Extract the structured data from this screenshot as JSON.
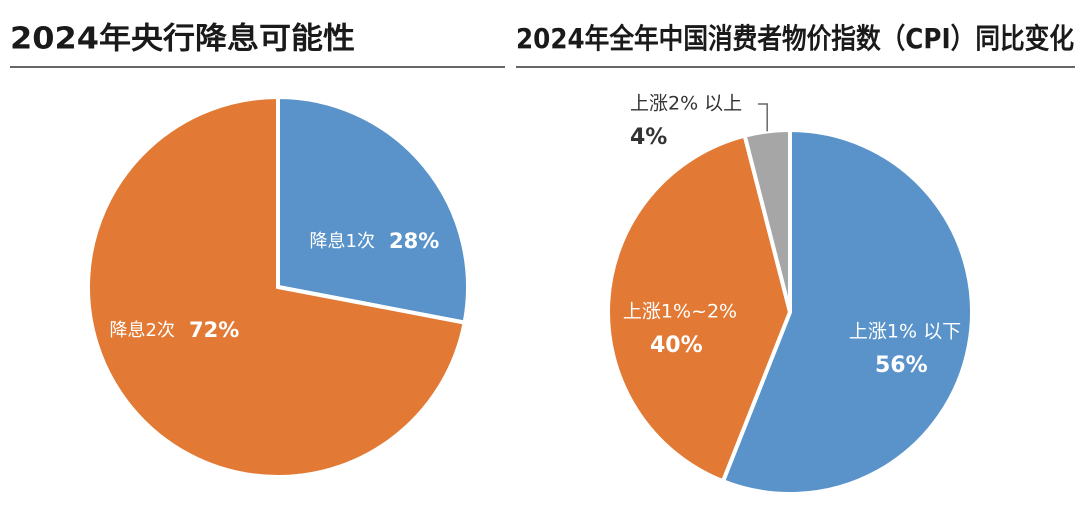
{
  "chart_data": [
    {
      "type": "pie",
      "title": "2024年央行降息可能性",
      "categories": [
        "降息1次",
        "降息2次"
      ],
      "values": [
        28,
        72
      ],
      "value_labels": [
        "28%",
        "72%"
      ],
      "colors": [
        "#5a93c9",
        "#e27a35"
      ]
    },
    {
      "type": "pie",
      "title": "2024年全年中国消费者物价指数（CPI）同比变化",
      "categories": [
        "上涨1% 以下",
        "上涨1%~2%",
        "上涨2% 以上"
      ],
      "values": [
        56,
        40,
        4
      ],
      "value_labels": [
        "56%",
        "40%",
        "4%"
      ],
      "colors": [
        "#5a93c9",
        "#e27a35",
        "#a6a6a6"
      ]
    }
  ]
}
